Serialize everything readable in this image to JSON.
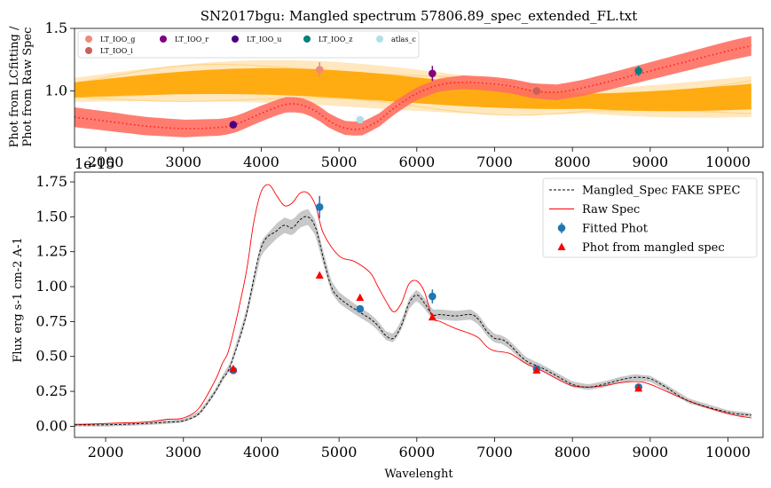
{
  "chart_data": [
    {
      "type": "line",
      "title": "SN2017bgu: Mangled spectrum 57806.89_spec_extended_FL.txt",
      "ylabel_lines": [
        "Phot from LCfitting /",
        "Phot from Raw Spec"
      ],
      "xlim": [
        1600,
        10450
      ],
      "ylim": [
        0.55,
        1.5
      ],
      "xticks": [
        2000,
        3000,
        4000,
        5000,
        6000,
        7000,
        8000,
        9000,
        10000
      ],
      "yticks": [
        1.0,
        1.5
      ],
      "points": [
        {
          "name": "LT_IOO_g",
          "x": 4750,
          "y": 1.17,
          "err": 0.06,
          "color": "#f08a78"
        },
        {
          "name": "LT_IOO_i",
          "x": 7540,
          "y": 1.0,
          "err": 0.03,
          "color": "#c9605a"
        },
        {
          "name": "LT_IOO_r",
          "x": 6200,
          "y": 1.14,
          "err": 0.06,
          "color": "#800080"
        },
        {
          "name": "LT_IOO_u",
          "x": 3640,
          "y": 0.73,
          "err": 0.02,
          "color": "#4b0082"
        },
        {
          "name": "LT_IOO_z",
          "x": 8850,
          "y": 1.16,
          "err": 0.04,
          "color": "#008080"
        },
        {
          "name": "atlas_c",
          "x": 5270,
          "y": 0.77,
          "err": 0.01,
          "color": "#b0e0e6"
        }
      ],
      "ratio_curve": {
        "x": [
          1600,
          2000,
          2500,
          3000,
          3500,
          3700,
          4000,
          4300,
          4500,
          4700,
          4900,
          5100,
          5300,
          5500,
          5700,
          6000,
          6300,
          6600,
          6900,
          7200,
          7500,
          7800,
          8100,
          8500,
          9000,
          9500,
          10000,
          10300
        ],
        "y": [
          0.79,
          0.76,
          0.72,
          0.7,
          0.71,
          0.74,
          0.82,
          0.89,
          0.89,
          0.84,
          0.75,
          0.7,
          0.7,
          0.76,
          0.86,
          0.98,
          1.05,
          1.07,
          1.06,
          1.04,
          1.0,
          0.99,
          1.02,
          1.08,
          1.16,
          1.24,
          1.32,
          1.36
        ]
      },
      "series_colors": {
        "curve": "#ff2020",
        "band": "#ff6f61",
        "gp": "#ffa500",
        "gp_light": "#ffd68a"
      }
    },
    {
      "type": "line",
      "title": "",
      "offset_text": "1e-15",
      "xlabel": "Wavelenght",
      "ylabel": "Flux erg s-1 cm-2 A-1",
      "xlim": [
        1600,
        10450
      ],
      "ylim": [
        -0.08,
        1.82
      ],
      "xticks": [
        2000,
        3000,
        4000,
        5000,
        6000,
        7000,
        8000,
        9000,
        10000
      ],
      "yticks": [
        0.0,
        0.25,
        0.5,
        0.75,
        1.0,
        1.25,
        1.5,
        1.75
      ],
      "legend": [
        "Mangled_Spec FAKE SPEC",
        "Raw Spec",
        "Fitted Phot",
        "Phot from mangled spec"
      ],
      "series": [
        {
          "name": "Mangled_Spec FAKE SPEC",
          "color": "#000000",
          "x": [
            1600,
            2000,
            2500,
            2800,
            3000,
            3200,
            3400,
            3500,
            3600,
            3800,
            4000,
            4200,
            4300,
            4400,
            4500,
            4600,
            4700,
            4800,
            4900,
            5000,
            5200,
            5400,
            5500,
            5600,
            5700,
            5800,
            5900,
            6000,
            6100,
            6200,
            6300,
            6500,
            6700,
            6800,
            6900,
            7000,
            7100,
            7200,
            7400,
            7600,
            7800,
            8000,
            8200,
            8400,
            8600,
            8800,
            9000,
            9200,
            9500,
            10000,
            10300
          ],
          "y": [
            0.01,
            0.01,
            0.02,
            0.03,
            0.04,
            0.09,
            0.24,
            0.34,
            0.43,
            0.78,
            1.28,
            1.4,
            1.44,
            1.42,
            1.48,
            1.5,
            1.42,
            1.2,
            1.0,
            0.92,
            0.84,
            0.77,
            0.72,
            0.65,
            0.63,
            0.72,
            0.88,
            0.94,
            0.88,
            0.8,
            0.8,
            0.79,
            0.8,
            0.76,
            0.68,
            0.63,
            0.62,
            0.58,
            0.47,
            0.42,
            0.36,
            0.3,
            0.28,
            0.3,
            0.33,
            0.35,
            0.34,
            0.28,
            0.18,
            0.1,
            0.08
          ]
        },
        {
          "name": "Raw Spec",
          "color": "#ff0000",
          "x": [
            1600,
            2000,
            2500,
            2800,
            3000,
            3200,
            3400,
            3500,
            3600,
            3800,
            3900,
            4000,
            4100,
            4200,
            4300,
            4400,
            4500,
            4600,
            4700,
            4800,
            5000,
            5200,
            5400,
            5500,
            5600,
            5700,
            5800,
            5900,
            6000,
            6100,
            6200,
            6300,
            6500,
            6700,
            6800,
            6900,
            7000,
            7200,
            7400,
            7600,
            7800,
            8000,
            8200,
            8400,
            8600,
            8800,
            9000,
            9500,
            10000,
            10300
          ],
          "y": [
            0.01,
            0.02,
            0.03,
            0.05,
            0.06,
            0.13,
            0.32,
            0.45,
            0.58,
            1.08,
            1.45,
            1.68,
            1.73,
            1.65,
            1.58,
            1.6,
            1.67,
            1.67,
            1.58,
            1.38,
            1.22,
            1.18,
            1.1,
            1.0,
            0.9,
            0.82,
            0.88,
            1.02,
            1.04,
            0.96,
            0.78,
            0.75,
            0.7,
            0.66,
            0.63,
            0.57,
            0.54,
            0.52,
            0.45,
            0.4,
            0.34,
            0.29,
            0.28,
            0.29,
            0.31,
            0.32,
            0.3,
            0.18,
            0.09,
            0.06
          ]
        }
      ],
      "fitted_phot": [
        {
          "x": 3640,
          "y": 0.4,
          "err": 0.02
        },
        {
          "x": 4750,
          "y": 1.57,
          "err": 0.08
        },
        {
          "x": 5270,
          "y": 0.84,
          "err": 0.01
        },
        {
          "x": 6200,
          "y": 0.93,
          "err": 0.05
        },
        {
          "x": 7540,
          "y": 0.41,
          "err": 0.01
        },
        {
          "x": 8850,
          "y": 0.28,
          "err": 0.02
        }
      ],
      "phot_mangled": [
        {
          "x": 3640,
          "y": 0.41
        },
        {
          "x": 4750,
          "y": 1.08
        },
        {
          "x": 5270,
          "y": 0.92
        },
        {
          "x": 6200,
          "y": 0.78
        },
        {
          "x": 7540,
          "y": 0.4
        },
        {
          "x": 8850,
          "y": 0.27
        }
      ],
      "colors": {
        "phot": "#1f77b4",
        "mangled": "#ff0000",
        "band": "#c8c8c8"
      }
    }
  ]
}
